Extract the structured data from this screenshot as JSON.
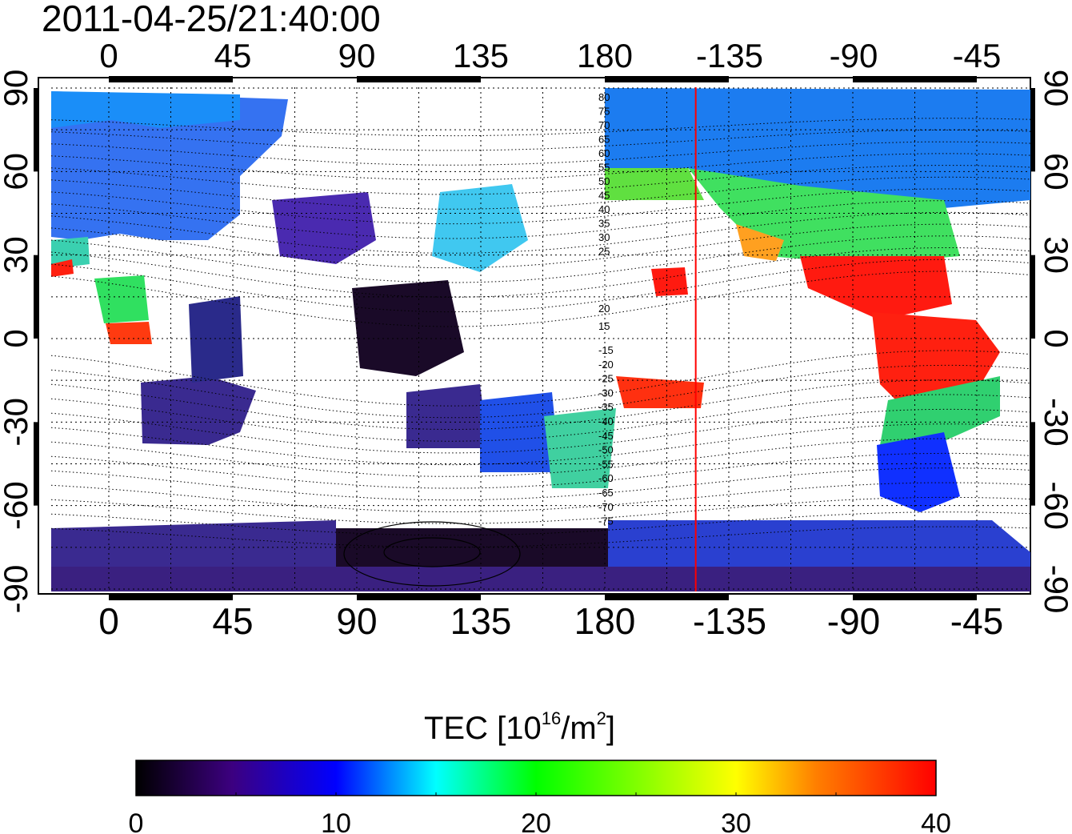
{
  "title": "2011-04-25/21:40:00",
  "map": {
    "lon_tick_labels": [
      "0",
      "45",
      "90",
      "135",
      "180",
      "-135",
      "-90",
      "-45"
    ],
    "lat_tick_labels": [
      "90",
      "60",
      "30",
      "0",
      "-30",
      "-60",
      "-90"
    ],
    "meridian_longitude": -147,
    "meridian_color": "#ff0000",
    "magnetic_latitude_labels_north": [
      "80",
      "75",
      "70",
      "65",
      "60",
      "55",
      "50",
      "45",
      "40",
      "35",
      "30",
      "25",
      "20",
      "15"
    ],
    "magnetic_latitude_labels_south": [
      "-15",
      "-20",
      "-25",
      "-30",
      "-35",
      "-40",
      "-45",
      "-50",
      "-55",
      "-60",
      "-65",
      "-70",
      "-75"
    ],
    "grid": "dotted"
  },
  "colorbar": {
    "title_prefix": "TEC  [10",
    "title_exponent": "16",
    "title_suffix": "/m",
    "title_square": "2",
    "title_end": "]",
    "tick_labels": [
      "0",
      "10",
      "20",
      "30",
      "40"
    ],
    "range": [
      0,
      40
    ],
    "colormap": [
      "#000000",
      "#3c0080",
      "#0000ff",
      "#00ffff",
      "#00ff00",
      "#ffff00",
      "#ff7f00",
      "#ff0000"
    ]
  }
}
